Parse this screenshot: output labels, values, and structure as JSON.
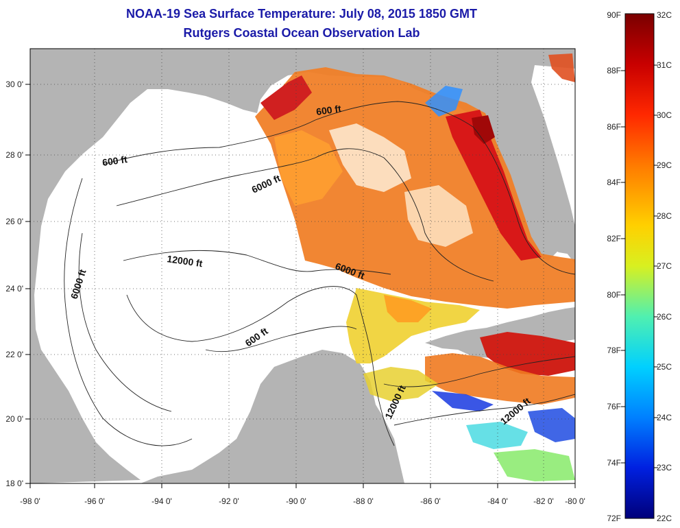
{
  "title": "NOAA-19 Sea Surface Temperature:  July 08, 2015 1850 GMT",
  "subtitle": "Rutgers Coastal Ocean Observation Lab",
  "x_ticks": [
    "-98 0'",
    "-96 0'",
    "-94 0'",
    "-92 0'",
    "-90 0'",
    "-88 0'",
    "-86 0'",
    "-84 0'",
    "-82 0'",
    "-80 0'"
  ],
  "y_ticks": [
    "30 0'",
    "28 0'",
    "26 0'",
    "24 0'",
    "22 0'",
    "20 0'",
    "18 0'"
  ],
  "contour_labels": [
    "600 ft",
    "600 ft",
    "6000 ft",
    "12000 ft",
    "6000 ft",
    "6000 ft",
    "600 ft",
    "12000 ft",
    "12000 ft"
  ],
  "colorbar": {
    "fahrenheit": [
      "90F",
      "88F",
      "86F",
      "84F",
      "82F",
      "80F",
      "78F",
      "76F",
      "74F",
      "72F"
    ],
    "celsius": [
      "32C",
      "31C",
      "30C",
      "29C",
      "28C",
      "27C",
      "26C",
      "25C",
      "24C",
      "23C",
      "22C"
    ],
    "colors": [
      "#7a0000",
      "#c80000",
      "#ff3000",
      "#ff8a00",
      "#ffd800",
      "#c8f030",
      "#40f0c0",
      "#00c8ff",
      "#0060ff",
      "#0010c0",
      "#00007a"
    ]
  },
  "colors": {
    "land": "#b4b4b4",
    "title": "#1a1aa8",
    "sst_hot": "#f06020",
    "sst_warm": "#ffa020"
  }
}
